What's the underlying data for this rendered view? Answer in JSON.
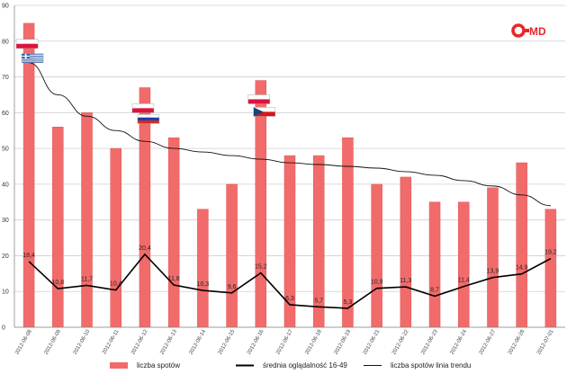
{
  "logo": {
    "text": "OMD",
    "color": "#e8262a"
  },
  "chart_data": {
    "type": "bar",
    "title": "",
    "xlabel": "",
    "ylabel": "",
    "ylim": [
      0,
      90
    ],
    "yticks": [
      0,
      10,
      20,
      30,
      40,
      50,
      60,
      70,
      80,
      90
    ],
    "grid": true,
    "legend_position": "bottom",
    "categories": [
      "2012-06-08",
      "2012-06-09",
      "2012-06-10",
      "2012-06-11",
      "2012-06-12",
      "2012-06-13",
      "2012-06-14",
      "2012-06-15",
      "2012-06-16",
      "2012-06-17",
      "2012-06-18",
      "2012-06-19",
      "2012-06-21",
      "2012-06-22",
      "2012-06-23",
      "2012-06-24",
      "2012-06-27",
      "2012-06-28",
      "2012-07-01"
    ],
    "series": [
      {
        "name": "liczba spotów",
        "type": "bar",
        "color": "#f26b6b",
        "values": [
          85,
          56,
          60,
          50,
          67,
          53,
          33,
          40,
          69,
          48,
          48,
          53,
          40,
          42,
          35,
          35,
          39,
          46,
          33
        ]
      },
      {
        "name": "średnia oglądalność 16-49",
        "type": "line",
        "color": "#000000",
        "values": [
          18.4,
          10.8,
          11.7,
          10.4,
          20.4,
          11.8,
          10.3,
          9.6,
          15.2,
          6.3,
          5.7,
          5.3,
          10.9,
          11.3,
          8.7,
          11.4,
          13.9,
          14.9,
          19.2
        ],
        "labels": [
          "18,4",
          "10,8",
          "11,7",
          "10,4",
          "20,4",
          "11,8",
          "10,3",
          "9,6",
          "15,2",
          "6,3",
          "5,7",
          "5,3",
          "10,9",
          "11,3",
          "8,7",
          "11,4",
          "13,9",
          "14,9",
          "19,2"
        ]
      },
      {
        "name": "liczba spotów linia trendu",
        "type": "trend",
        "color": "#111111",
        "values": [
          74,
          65,
          59,
          55,
          52,
          50,
          49,
          48,
          47,
          46,
          45.5,
          45,
          44.5,
          43.5,
          42.5,
          41,
          39.5,
          37,
          34
        ]
      }
    ],
    "flags": [
      {
        "category_index": 0,
        "y": 80.5,
        "country": "Poland"
      },
      {
        "category_index": 0,
        "y": 76.5,
        "country": "Greece"
      },
      {
        "category_index": 4,
        "y": 62.5,
        "country": "Poland"
      },
      {
        "category_index": 4,
        "y": 59.5,
        "country": "Russia"
      },
      {
        "category_index": 8,
        "y": 65,
        "country": "Poland"
      },
      {
        "category_index": 8,
        "y": 61.5,
        "country": "Czech Republic"
      }
    ]
  }
}
